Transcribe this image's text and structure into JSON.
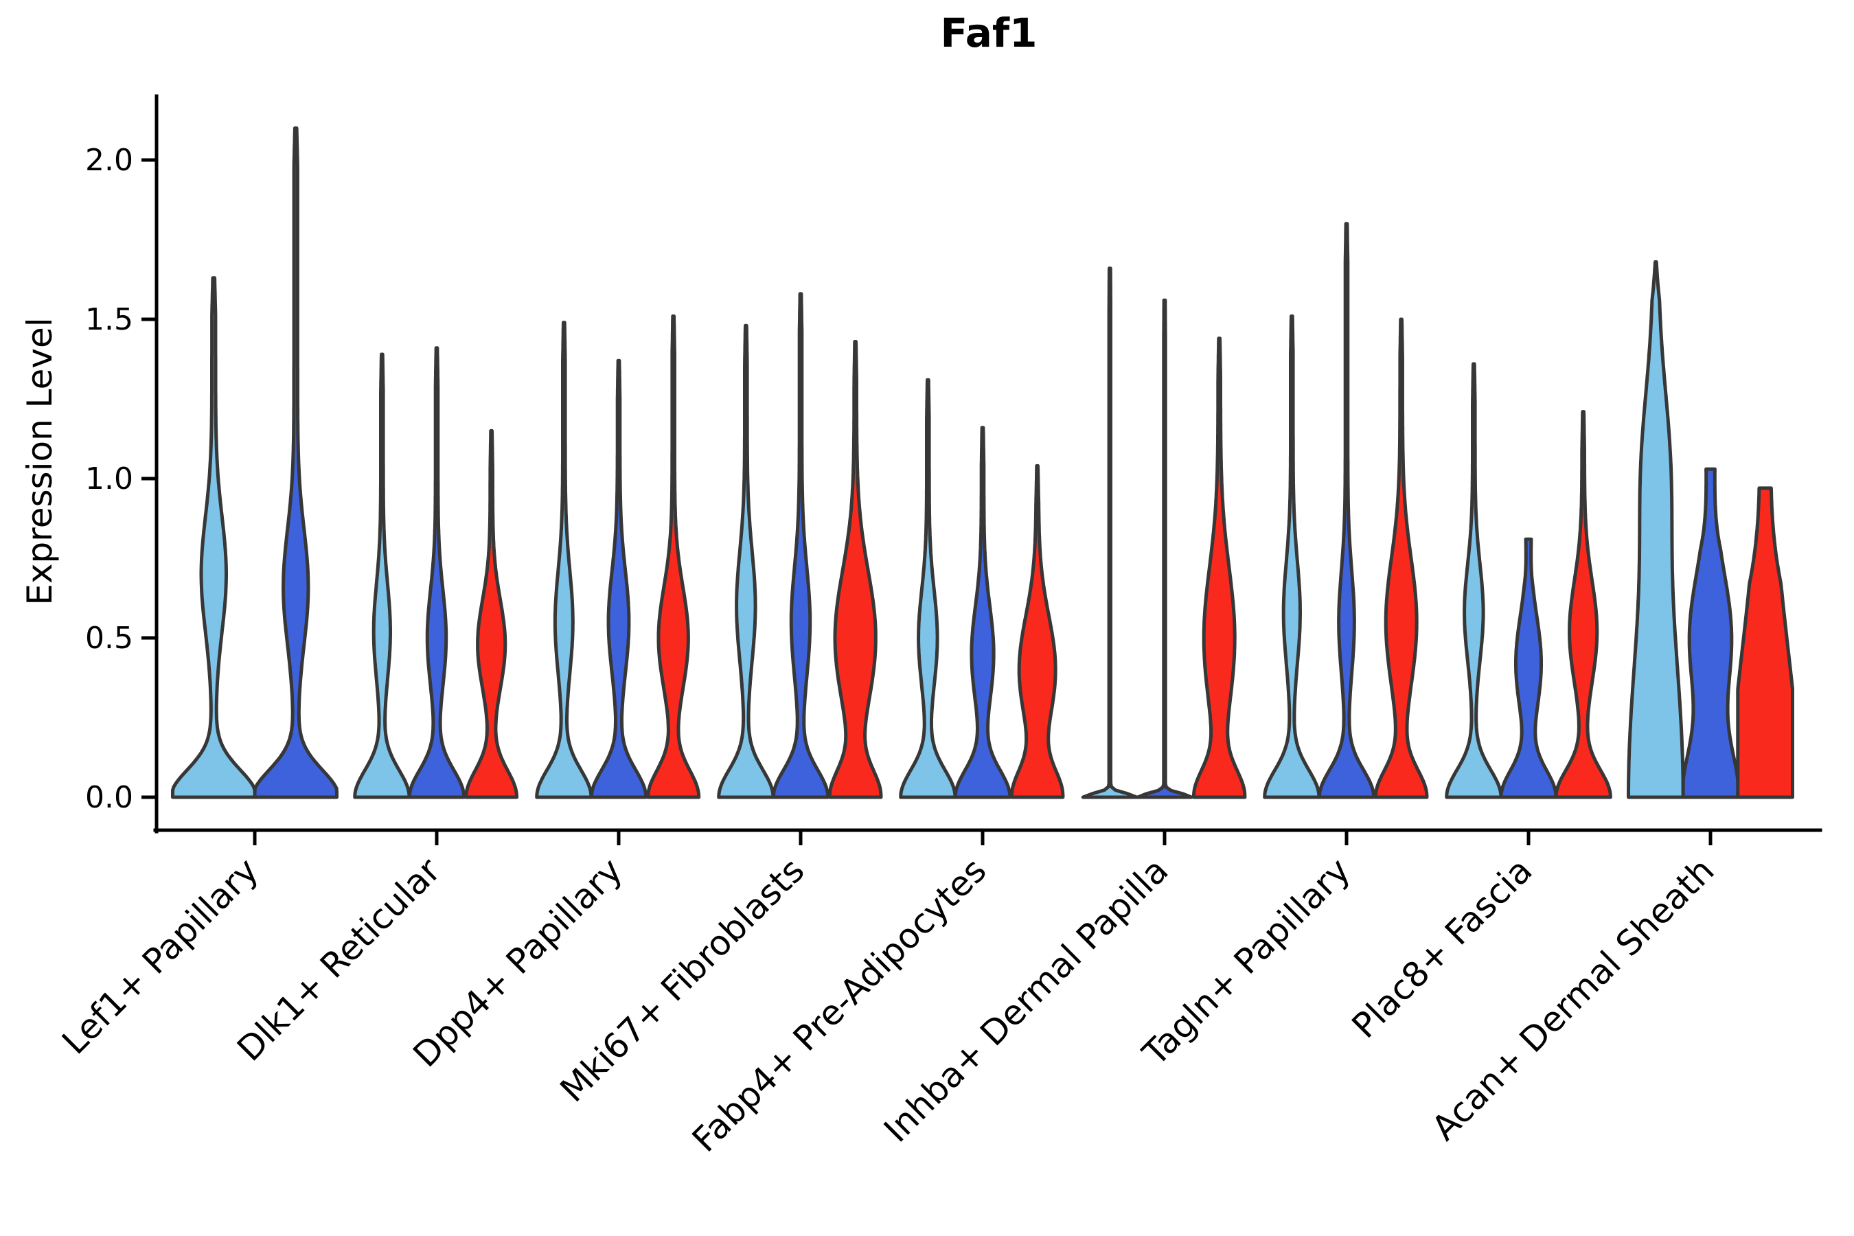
{
  "title": "Faf1",
  "palette": {
    "light_blue": "#7EC4E8",
    "dark_blue": "#3D62DB",
    "red": "#F9291E",
    "outline": "#373737",
    "axis": "#000000"
  },
  "chart_data": {
    "type": "violin",
    "title": "Faf1",
    "xlabel": "",
    "ylabel": "Expression Level",
    "ylim": [
      0,
      2.2
    ],
    "yticks": [
      0.0,
      0.5,
      1.0,
      1.5,
      2.0
    ],
    "ytick_labels": [
      "0.0",
      "0.5",
      "1.0",
      "1.5",
      "2.0"
    ],
    "grid": "off",
    "legend": "none",
    "splits_note": "each category shows up to 3 split violins colored light_blue, dark_blue, red",
    "categories": [
      "Lef1+ Papillary",
      "Dlk1+ Reticular",
      "Dpp4+ Papillary",
      "Mki67+ Fibroblasts",
      "Fabp4+ Pre-Adipocytes",
      "Inhba+ Dermal Papilla",
      "Tagln+ Papillary",
      "Plac8+ Fascia",
      "Acan+ Dermal Sheath"
    ],
    "groups": [
      {
        "category": "Lef1+ Papillary",
        "violins": [
          {
            "color": "light_blue",
            "max": 1.63,
            "base_w": 1.0,
            "bulge_c": 0.7,
            "bulge_w": 0.26,
            "bulge_sigma": 0.18
          },
          {
            "color": "dark_blue",
            "max": 2.1,
            "base_w": 1.0,
            "bulge_c": 0.66,
            "bulge_w": 0.26,
            "bulge_sigma": 0.18
          }
        ]
      },
      {
        "category": "Dlk1+ Reticular",
        "violins": [
          {
            "color": "light_blue",
            "max": 1.39,
            "bulge_c": 0.52,
            "bulge_w": 0.26,
            "bulge_sigma": 0.15
          },
          {
            "color": "dark_blue",
            "max": 1.41,
            "bulge_c": 0.5,
            "bulge_w": 0.3,
            "bulge_sigma": 0.15
          },
          {
            "color": "red",
            "max": 1.15,
            "base_w": 0.88,
            "bulge_c": 0.48,
            "bulge_w": 0.46,
            "bulge_sigma": 0.14
          }
        ]
      },
      {
        "category": "Dpp4+ Papillary",
        "violins": [
          {
            "color": "light_blue",
            "max": 1.49,
            "bulge_c": 0.55,
            "bulge_w": 0.28,
            "bulge_sigma": 0.16
          },
          {
            "color": "dark_blue",
            "max": 1.37,
            "bulge_c": 0.55,
            "bulge_w": 0.33,
            "bulge_sigma": 0.16
          },
          {
            "color": "red",
            "max": 1.51,
            "base_w": 0.88,
            "bulge_c": 0.5,
            "bulge_w": 0.5,
            "bulge_sigma": 0.16
          }
        ]
      },
      {
        "category": "Mki67+ Fibroblasts",
        "violins": [
          {
            "color": "light_blue",
            "max": 1.48,
            "bulge_c": 0.6,
            "bulge_w": 0.3,
            "bulge_sigma": 0.17
          },
          {
            "color": "dark_blue",
            "max": 1.58,
            "bulge_c": 0.55,
            "bulge_w": 0.3,
            "bulge_sigma": 0.17
          },
          {
            "color": "red",
            "max": 1.43,
            "base_w": 0.85,
            "bulge_c": 0.5,
            "bulge_w": 0.7,
            "bulge_sigma": 0.21
          }
        ]
      },
      {
        "category": "Fabp4+ Pre-Adipocytes",
        "violins": [
          {
            "color": "light_blue",
            "max": 1.31,
            "bulge_c": 0.5,
            "bulge_w": 0.3,
            "bulge_sigma": 0.15
          },
          {
            "color": "dark_blue",
            "max": 1.16,
            "bulge_c": 0.45,
            "bulge_w": 0.36,
            "bulge_sigma": 0.15
          },
          {
            "color": "red",
            "max": 1.04,
            "base_w": 0.85,
            "bulge_c": 0.4,
            "bulge_w": 0.62,
            "bulge_sigma": 0.17
          }
        ]
      },
      {
        "category": "Inhba+ Dermal Papilla",
        "violins": [
          {
            "color": "light_blue",
            "max": 1.66,
            "line_only": true
          },
          {
            "color": "dark_blue",
            "max": 1.56,
            "line_only": true
          },
          {
            "color": "red",
            "max": 1.44,
            "base_w": 0.85,
            "bulge_c": 0.5,
            "bulge_w": 0.52,
            "bulge_sigma": 0.22
          }
        ]
      },
      {
        "category": "Tagln+ Papillary",
        "violins": [
          {
            "color": "light_blue",
            "max": 1.51,
            "bulge_c": 0.58,
            "bulge_w": 0.26,
            "bulge_sigma": 0.16
          },
          {
            "color": "dark_blue",
            "max": 1.8,
            "bulge_c": 0.55,
            "bulge_w": 0.24,
            "bulge_sigma": 0.16
          },
          {
            "color": "red",
            "max": 1.5,
            "base_w": 0.88,
            "bulge_c": 0.55,
            "bulge_w": 0.52,
            "bulge_sigma": 0.2
          }
        ]
      },
      {
        "category": "Plac8+ Fascia",
        "violins": [
          {
            "color": "light_blue",
            "max": 1.36,
            "bulge_c": 0.58,
            "bulge_w": 0.3,
            "bulge_sigma": 0.15
          },
          {
            "color": "dark_blue",
            "max": 0.81,
            "bulge_c": 0.42,
            "bulge_w": 0.42,
            "bulge_sigma": 0.15,
            "cap": "flat",
            "cap_w": 0.1,
            "tip_taper": 0.15
          },
          {
            "color": "red",
            "max": 1.21,
            "bulge_c": 0.52,
            "bulge_w": 0.46,
            "bulge_sigma": 0.16
          }
        ]
      },
      {
        "category": "Acan+ Dermal Sheath",
        "violins": [
          {
            "color": "light_blue",
            "max": 1.68,
            "base_w": 0.92,
            "base_sigma": 0.55,
            "bulge_c": 1.05,
            "bulge_w": 0.32,
            "bulge_sigma": 0.25,
            "stem_w": 0.08
          },
          {
            "color": "dark_blue",
            "max": 1.03,
            "base_w": 0.88,
            "base_sigma": 0.15,
            "bulge_c": 0.5,
            "bulge_w": 0.65,
            "bulge_sigma": 0.2,
            "stem_w": 0.12,
            "cap": "flat",
            "cap_w": 0.16,
            "tip_taper": 0.25
          },
          {
            "color": "red",
            "max": 0.97,
            "base_w": 0.82,
            "base_sigma": 0.3,
            "bulge_c": 0.45,
            "bulge_w": 0.45,
            "bulge_sigma": 0.35,
            "stem_w": 0.14,
            "cap": "flat",
            "cap_w": 0.22,
            "tip_taper": 0.3
          }
        ]
      }
    ]
  }
}
